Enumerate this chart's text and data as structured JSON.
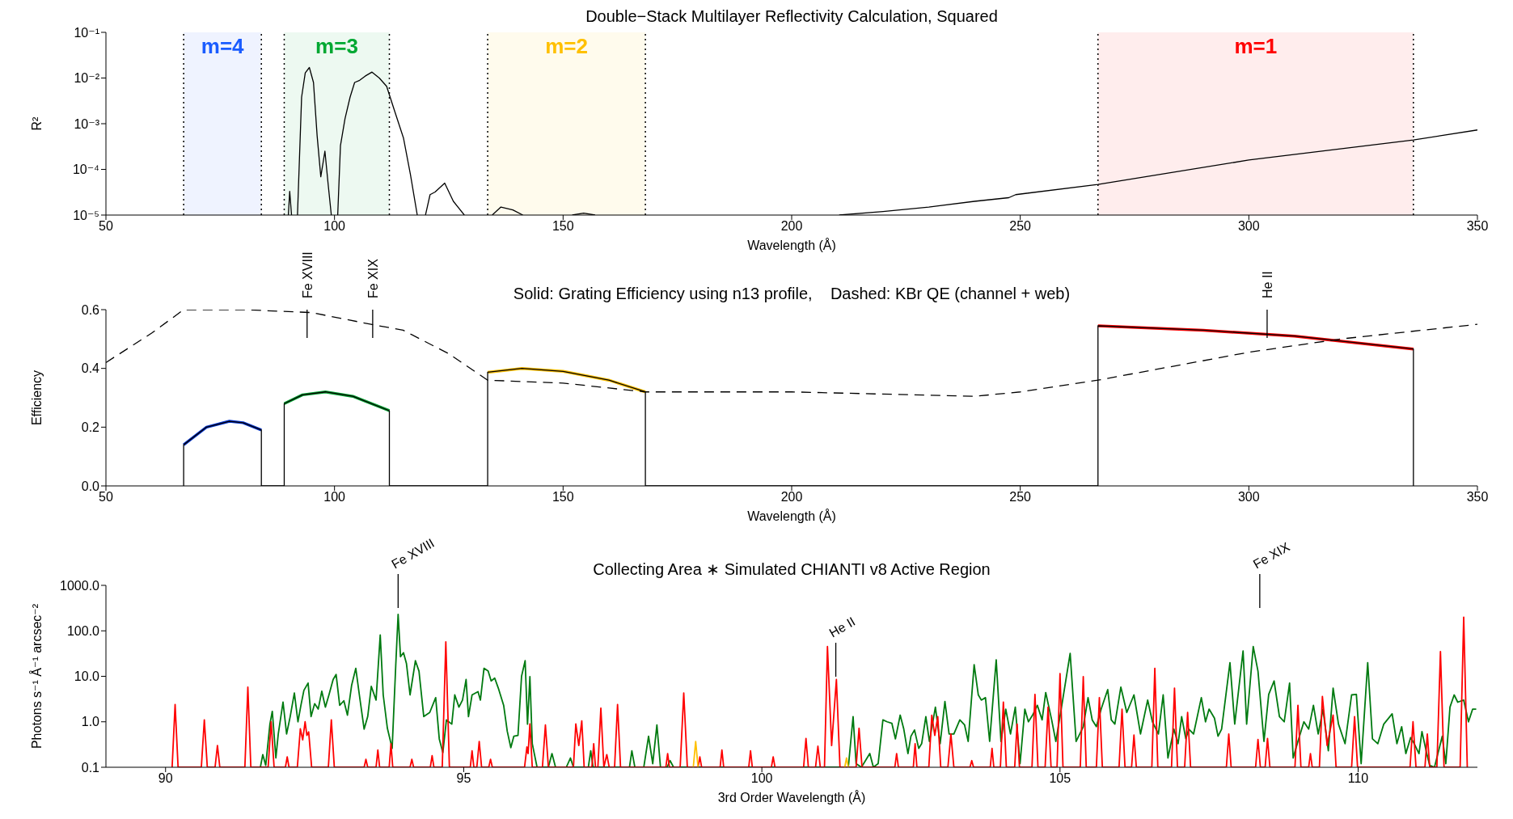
{
  "chart_data": [
    {
      "type": "line",
      "title": "Double−Stack Multilayer Reflectivity Calculation, Squared",
      "xlabel": "Wavelength (Å)",
      "ylabel": "R²",
      "log": "y",
      "xlim": [
        50,
        350
      ],
      "xticks": [
        50,
        100,
        150,
        200,
        250,
        300,
        350
      ],
      "ylim": [
        1e-05,
        0.1
      ],
      "yticks": [
        {
          "value": 1e-05,
          "label": "10⁻⁵"
        },
        {
          "value": 0.0001,
          "label": "10⁻⁴"
        },
        {
          "value": 0.001,
          "label": "10⁻³"
        },
        {
          "value": 0.01,
          "label": "10⁻²"
        },
        {
          "value": 0.1,
          "label": "10⁻¹"
        }
      ],
      "bands": [
        {
          "axis": "x",
          "from": 67,
          "to": 84,
          "label": "m=4",
          "color": "#1a5cff"
        },
        {
          "axis": "x",
          "from": 89,
          "to": 112,
          "label": "m=3",
          "color": "#00a832"
        },
        {
          "axis": "x",
          "from": 133.5,
          "to": 168,
          "label": "m=2",
          "color": "#ffc000"
        },
        {
          "axis": "x",
          "from": 267,
          "to": 336,
          "label": "m=1",
          "color": "#ff0000"
        }
      ],
      "series": [
        {
          "color": "#000000",
          "x": [
            89.9,
            90.2,
            90.6,
            90.8,
            91.9,
            92.8,
            93.6,
            94.5,
            95.4,
            96.2,
            97.0,
            97.9,
            98.6,
            99.3,
            100.0,
            100.7,
            101.3,
            102.3,
            103.4,
            104.4,
            105.5,
            106.7,
            108.2,
            109.8,
            111.4,
            113.0,
            115.1,
            116.6,
            118.1,
            119.0,
            119.9,
            120.9,
            122.0,
            124.1,
            126.0,
            128.4,
            130.0,
            134.5,
            136.4,
            139.0,
            141.2,
            145.0,
            152.0,
            154.5,
            157.0,
            180.0,
            210.4,
            220.0,
            230.0,
            240.0,
            247.5,
            249.0,
            267.0,
            300.0,
            336.0,
            350.0
          ],
          "values": [
            1e-05,
            3.3e-05,
            1e-05,
            null,
            1e-05,
            0.0038,
            0.013,
            0.017,
            0.008,
            0.00054,
            6.9e-05,
            0.00025,
            4.8e-05,
            1e-05,
            null,
            1e-05,
            0.00033,
            0.0013,
            0.0038,
            0.008,
            0.0089,
            0.011,
            0.0135,
            0.01,
            0.0066,
            0.0021,
            0.00048,
            7.8e-05,
            1e-05,
            null,
            1e-05,
            2.8e-05,
            3.2e-05,
            5e-05,
            2e-05,
            1e-05,
            null,
            1e-05,
            1.5e-05,
            1.3e-05,
            1e-05,
            null,
            1e-05,
            1.1e-05,
            1e-05,
            null,
            1e-05,
            1.2e-05,
            1.5e-05,
            2e-05,
            2.4e-05,
            2.8e-05,
            4.7e-05,
            0.00016,
            0.00044,
            0.00073
          ]
        }
      ]
    },
    {
      "type": "line",
      "title": "Solid: Grating Efficiency using n13 profile,    Dashed: KBr QE (channel + web)",
      "xlabel": "Wavelength (Å)",
      "ylabel": "Efficiency",
      "xlim": [
        50,
        350
      ],
      "xticks": [
        50,
        100,
        150,
        200,
        250,
        300,
        350
      ],
      "ylim": [
        0,
        0.6
      ],
      "yticks": [
        {
          "value": 0,
          "label": "0.0"
        },
        {
          "value": 0.2,
          "label": "0.2"
        },
        {
          "value": 0.4,
          "label": "0.4"
        },
        {
          "value": 0.6,
          "label": "0.6"
        }
      ],
      "ref_lines": [
        {
          "axis": "x",
          "value": 94,
          "label": "Fe XVIII"
        },
        {
          "axis": "x",
          "value": 108.35,
          "label": "Fe XIX"
        },
        {
          "axis": "x",
          "value": 304,
          "label": "He II"
        }
      ],
      "series": [
        {
          "color": "#0033cc",
          "x": [
            67,
            72,
            77,
            80,
            84
          ],
          "values": [
            0.14,
            0.2,
            0.22,
            0.215,
            0.19
          ]
        },
        {
          "color": "#00a030",
          "x": [
            89,
            93,
            98,
            104,
            112
          ],
          "values": [
            0.28,
            0.31,
            0.32,
            0.305,
            0.256
          ]
        },
        {
          "color": "#ffc000",
          "x": [
            133.5,
            141,
            150,
            160,
            168
          ],
          "values": [
            0.387,
            0.4,
            0.39,
            0.36,
            0.32
          ]
        },
        {
          "color": "#ff0000",
          "x": [
            267,
            290,
            310,
            336
          ],
          "values": [
            0.545,
            0.53,
            0.51,
            0.466
          ]
        },
        {
          "color": "#000000",
          "x": [
            67,
            67,
            72,
            77,
            80,
            84,
            84,
            89,
            89,
            93,
            98,
            104,
            112,
            112,
            133.5,
            133.5,
            141,
            150,
            160,
            168,
            168,
            267,
            267,
            290,
            310,
            336,
            336
          ],
          "values": [
            0,
            0.14,
            0.2,
            0.22,
            0.215,
            0.19,
            0,
            0,
            0.28,
            0.31,
            0.32,
            0.305,
            0.256,
            0,
            0,
            0.387,
            0.4,
            0.39,
            0.36,
            0.32,
            0,
            0,
            0.545,
            0.53,
            0.51,
            0.466,
            0
          ]
        },
        {
          "color": "#000000",
          "line_style": "dashed",
          "x": [
            50,
            60,
            67,
            80,
            95,
            108,
            115,
            125,
            133.5,
            150,
            168,
            200,
            240,
            250,
            267,
            300,
            320,
            350
          ],
          "values": [
            0.42,
            0.52,
            0.6,
            0.6,
            0.59,
            0.55,
            0.53,
            0.45,
            0.36,
            0.35,
            0.32,
            0.32,
            0.305,
            0.32,
            0.36,
            0.455,
            0.5,
            0.55
          ]
        }
      ]
    },
    {
      "type": "line",
      "title": "Collecting Area ∗ Simulated CHIANTI v8 Active Region",
      "xlabel": "3rd Order Wavelength (Å)",
      "ylabel": "Photons s⁻¹ Å⁻¹ arcsec⁻²",
      "log": "y",
      "xlim": [
        89,
        112
      ],
      "xticks": [
        90,
        95,
        100,
        105,
        110
      ],
      "ylim": [
        0.1,
        1000
      ],
      "yticks": [
        {
          "value": 0.1,
          "label": "0.1"
        },
        {
          "value": 1,
          "label": "1.0"
        },
        {
          "value": 10,
          "label": "10.0"
        },
        {
          "value": 100,
          "label": "100.0"
        },
        {
          "value": 1000,
          "label": "1000.0"
        }
      ],
      "ref_lines": [
        {
          "axis": "x",
          "value": 93.9,
          "label": "Fe XVIII"
        },
        {
          "axis": "x",
          "value": 101.24,
          "label": "He II"
        },
        {
          "axis": "x",
          "value": 108.35,
          "label": "Fe XIX"
        }
      ],
      "series": [
        {
          "color": "#007a10",
          "x": [
            91.59,
            91.63,
            91.68,
            91.75,
            91.79,
            91.85,
            91.89,
            91.97,
            92.03,
            92.09,
            92.16,
            92.22,
            92.27,
            92.32,
            92.39,
            92.44,
            92.5,
            92.56,
            92.62,
            92.68,
            92.74,
            92.81,
            92.86,
            92.92,
            92.99,
            93.05,
            93.12,
            93.19,
            93.25,
            93.33,
            93.39,
            93.45,
            93.53,
            93.6,
            93.65,
            93.72,
            93.8,
            93.86,
            93.9,
            93.94,
            93.99,
            94.04,
            94.1,
            94.19,
            94.25,
            94.33,
            94.43,
            94.53,
            94.59,
            94.65,
            94.71,
            94.8,
            94.85,
            94.92,
            94.98,
            95.04,
            95.08,
            95.14,
            95.24,
            95.28,
            95.34,
            95.41,
            95.46,
            95.52,
            95.58,
            95.67,
            95.73,
            95.79,
            95.84,
            95.91,
            95.97,
            96.03,
            96.07,
            96.11,
            96.15,
            96.23,
            96.42,
            96.48,
            96.54,
            96.72,
            96.79,
            96.84,
            97.09,
            97.13,
            97.17,
            97.78,
            97.82,
            97.87,
            98.02,
            98.1,
            98.17,
            98.24,
            98.3,
            98.41,
            98.46,
            98.52,
            101.45,
            101.53,
            101.58,
            101.67,
            101.81,
            101.87,
            101.95,
            102.03,
            102.1,
            102.18,
            102.24,
            102.32,
            102.38,
            102.45,
            102.5,
            102.56,
            102.63,
            102.68,
            102.75,
            102.81,
            102.91,
            102.99,
            103.07,
            103.14,
            103.22,
            103.32,
            103.4,
            103.46,
            103.56,
            103.63,
            103.68,
            103.75,
            103.82,
            103.93,
            104.01,
            104.09,
            104.17,
            104.25,
            104.33,
            104.41,
            104.47,
            104.54,
            104.62,
            104.7,
            104.76,
            104.86,
            104.93,
            105.02,
            105.17,
            105.27,
            105.39,
            105.47,
            105.54,
            105.61,
            105.69,
            105.8,
            105.86,
            105.92,
            106.02,
            106.12,
            106.24,
            106.35,
            106.47,
            106.55,
            106.65,
            106.73,
            106.81,
            106.91,
            106.98,
            107.04,
            107.11,
            107.16,
            107.24,
            107.37,
            107.44,
            107.5,
            107.59,
            107.65,
            107.71,
            107.85,
            107.93,
            108.07,
            108.13,
            108.24,
            108.32,
            108.42,
            108.5,
            108.59,
            108.68,
            108.76,
            108.85,
            108.91,
            108.99,
            109.09,
            109.17,
            109.25,
            109.33,
            109.41,
            109.5,
            109.58,
            109.67,
            109.78,
            109.89,
            109.97,
            110.05,
            110.16,
            110.24,
            110.33,
            110.43,
            110.57,
            110.65,
            110.73,
            110.8,
            110.88,
            110.94,
            111.02,
            111.07,
            111.15,
            111.2,
            111.28,
            111.41,
            111.47,
            111.54,
            111.61,
            111.67,
            111.77,
            111.85,
            111.92,
            111.98
          ],
          "values": [
            0.1,
            0.19,
            0.11,
            0.89,
            1.7,
            0.16,
            0.54,
            2.7,
            0.54,
            1.3,
            4.3,
            1.0,
            2.3,
            4.9,
            7.1,
            1.3,
            2.5,
            1.9,
            4.7,
            2.1,
            3.9,
            8.5,
            11,
            2.3,
            2.9,
            1.4,
            6.3,
            15,
            3.9,
            0.69,
            1.3,
            6,
            3,
            81,
            3.9,
            0.72,
            0.26,
            17,
            230,
            27,
            33,
            19,
            3.9,
            22,
            13,
            1.3,
            1.6,
            3.4,
            0.42,
            0.21,
            1.1,
            0.89,
            3.9,
            2.1,
            3,
            8.5,
            1.3,
            3.9,
            4.6,
            3,
            15,
            13,
            7.9,
            9.1,
            5.5,
            2.3,
            0.62,
            0.27,
            0.48,
            0.5,
            10,
            22,
            0.89,
            9.8,
            0.33,
            0.1,
            0.1,
            0.2,
            0.1,
            0.1,
            0.16,
            0.1,
            0.1,
            0.23,
            0.1,
            0.1,
            0.23,
            0.1,
            0.1,
            0.48,
            0.12,
            0.85,
            0.1,
            0.1,
            0.14,
            0.1,
            0.1,
            1.3,
            0.12,
            0.1,
            0.2,
            0.1,
            0.12,
            1.1,
            1.0,
            0.93,
            0.42,
            1.4,
            0.69,
            0.2,
            0.48,
            0.66,
            0.26,
            0.33,
            1.3,
            0.37,
            2.1,
            0.33,
            2.8,
            0.54,
            0.54,
            1.1,
            0.85,
            0.37,
            18,
            3.9,
            3,
            3.4,
            0.37,
            23,
            0.37,
            1.9,
            0.54,
            2.1,
            0.12,
            1.9,
            1.0,
            1.4,
            2.3,
            1.1,
            4.4,
            1.1,
            0.37,
            1.9,
            32,
            0.37,
            0.78,
            3.4,
            1.1,
            0.78,
            1.9,
            5.1,
            1.1,
            0.89,
            5.8,
            1.6,
            3.9,
            0.54,
            3,
            1.0,
            0.54,
            3.9,
            0.16,
            0.69,
            0.33,
            1.3,
            0.42,
            0.69,
            0.54,
            3.4,
            1.0,
            1.9,
            1.2,
            0.48,
            0.69,
            20,
            0.89,
            36,
            0.89,
            45,
            13,
            0.37,
            4.0,
            7.9,
            1.3,
            1.0,
            7.1,
            0.16,
            0.37,
            1.0,
            0.69,
            2.3,
            0.54,
            1.9,
            0.23,
            5.5,
            0.89,
            0.33,
            3.9,
            4.0,
            0.12,
            20,
            0.42,
            0.33,
            0.89,
            1.5,
            0.33,
            0.78,
            0.2,
            0.45,
            0.33,
            0.2,
            0.61,
            0.2,
            0.11,
            0.1,
            0.48,
            0.12,
            2.1,
            3.9,
            2.7,
            3,
            1.0,
            1.9,
            1.9
          ]
        },
        {
          "color": "#ff0000",
          "x": [
            90.11,
            90.16,
            90.21,
            90.6,
            90.65,
            90.7,
            90.83,
            90.87,
            90.91,
            91.33,
            91.38,
            91.43,
            91.72,
            91.77,
            91.82,
            92.01,
            92.04,
            92.07,
            92.21,
            92.26,
            92.3,
            92.34,
            92.37,
            92.4,
            92.45,
            92.73,
            92.78,
            92.83,
            93.33,
            93.36,
            93.39,
            93.53,
            93.56,
            93.59,
            93.75,
            93.78,
            93.81,
            94.1,
            94.13,
            94.16,
            94.44,
            94.47,
            94.5,
            94.64,
            94.7,
            94.76,
            95.11,
            95.14,
            95.17,
            95.22,
            95.26,
            95.3,
            95.42,
            95.45,
            95.48,
            96.02,
            96.06,
            96.08,
            96.11,
            96.15,
            96.32,
            96.37,
            96.42,
            96.84,
            96.88,
            96.93,
            96.98,
            97.02,
            97.15,
            97.18,
            97.21,
            97.25,
            97.3,
            97.35,
            97.4,
            97.44,
            97.53,
            97.58,
            97.63,
            98.39,
            98.42,
            98.45,
            98.63,
            98.69,
            98.75,
            98.93,
            98.96,
            98.99,
            99.3,
            99.33,
            99.36,
            99.78,
            99.81,
            99.84,
            100.16,
            100.19,
            100.22,
            100.7,
            100.74,
            100.78,
            100.9,
            100.94,
            100.98,
            101.05,
            101.1,
            101.17,
            101.25,
            101.31,
            101.58,
            101.63,
            101.68,
            102.23,
            102.26,
            102.29,
            102.54,
            102.57,
            102.6,
            102.8,
            102.85,
            102.9,
            102.95,
            103.0,
            103.12,
            103.17,
            103.22,
            103.49,
            103.52,
            103.55,
            103.83,
            103.86,
            103.89,
            104.0,
            104.05,
            104.1,
            104.24,
            104.28,
            104.32,
            104.53,
            104.58,
            104.63,
            104.75,
            104.8,
            104.85,
            104.95,
            105.0,
            105.05,
            105.34,
            105.39,
            105.44,
            105.61,
            105.66,
            105.71,
            105.99,
            106.04,
            106.09,
            106.2,
            106.24,
            106.28,
            106.54,
            106.59,
            106.64,
            106.87,
            106.92,
            106.97,
            107.09,
            107.14,
            107.19,
            107.79,
            107.83,
            107.87,
            108.28,
            108.32,
            108.36,
            108.44,
            108.48,
            108.52,
            108.94,
            108.99,
            109.04,
            109.17,
            109.2,
            109.23,
            109.35,
            109.4,
            109.48,
            109.58,
            109.63,
            109.89,
            109.94,
            109.99,
            110.87,
            110.92,
            110.97,
            111.12,
            111.16,
            111.2,
            111.32,
            111.38,
            111.44,
            111.71,
            111.77,
            111.83
          ],
          "values": [
            0.1,
            2.4,
            0.1,
            0.1,
            1.1,
            0.1,
            0.1,
            0.3,
            0.1,
            0.1,
            5.8,
            0.1,
            0.1,
            1.0,
            0.1,
            0.1,
            0.17,
            0.1,
            0.1,
            0.7,
            0.4,
            1.0,
            0.5,
            0.6,
            0.1,
            0.1,
            1.1,
            0.1,
            0.1,
            0.15,
            0.1,
            0.1,
            0.24,
            0.1,
            0.1,
            0.33,
            0.1,
            0.1,
            0.15,
            0.1,
            0.1,
            0.18,
            0.1,
            0.1,
            57,
            0.1,
            0.1,
            0.23,
            0.1,
            0.1,
            0.37,
            0.1,
            0.1,
            0.15,
            0.1,
            0.1,
            0.28,
            0.2,
            0.9,
            0.1,
            0.1,
            0.85,
            0.1,
            0.1,
            0.9,
            0.3,
            1.05,
            0.1,
            0.1,
            0.33,
            0.1,
            0.1,
            2.0,
            0.1,
            0.19,
            0.1,
            0.1,
            2.4,
            0.1,
            0.1,
            0.2,
            0.1,
            0.1,
            4.3,
            0.1,
            0.1,
            0.17,
            0.1,
            0.1,
            0.24,
            0.1,
            0.1,
            0.23,
            0.1,
            0.1,
            0.17,
            0.1,
            0.1,
            0.43,
            0.1,
            0.1,
            0.29,
            0.1,
            0.1,
            45,
            0.3,
            8.5,
            0.1,
            0.1,
            0.72,
            0.1,
            0.1,
            0.2,
            0.1,
            0.1,
            0.33,
            0.1,
            0.1,
            1.4,
            0.5,
            1.3,
            0.1,
            0.1,
            0.54,
            0.1,
            0.1,
            0.14,
            0.1,
            0.1,
            0.26,
            0.1,
            0.1,
            2.7,
            0.1,
            0.1,
            0.89,
            0.1,
            0.1,
            4.0,
            0.1,
            0.1,
            2.1,
            0.1,
            0.1,
            11.5,
            0.1,
            0.1,
            9.8,
            0.1,
            0.1,
            3.4,
            0.1,
            0.1,
            1.9,
            0.1,
            0.1,
            0.51,
            0.1,
            0.1,
            15,
            0.1,
            0.1,
            5.5,
            0.1,
            0.1,
            1.6,
            0.1,
            0.1,
            0.54,
            0.1,
            0.1,
            0.41,
            0.1,
            0.1,
            0.43,
            0.1,
            0.1,
            2.3,
            0.1,
            0.1,
            0.2,
            0.1,
            0.1,
            3.6,
            0.3,
            1.4,
            0.1,
            0.1,
            1.3,
            0.1,
            0.1,
            1.0,
            0.1,
            0.1,
            0.54,
            0.1,
            0.1,
            35,
            0.1,
            0.1,
            200,
            0.1
          ]
        },
        {
          "color": "#ffc000",
          "x": [
            98.85,
            98.89,
            98.93,
            98.95,
            101.39,
            101.42,
            101.45
          ],
          "values": [
            0.1,
            0.37,
            0.1,
            null,
            0.1,
            0.16,
            0.1
          ]
        }
      ]
    }
  ]
}
